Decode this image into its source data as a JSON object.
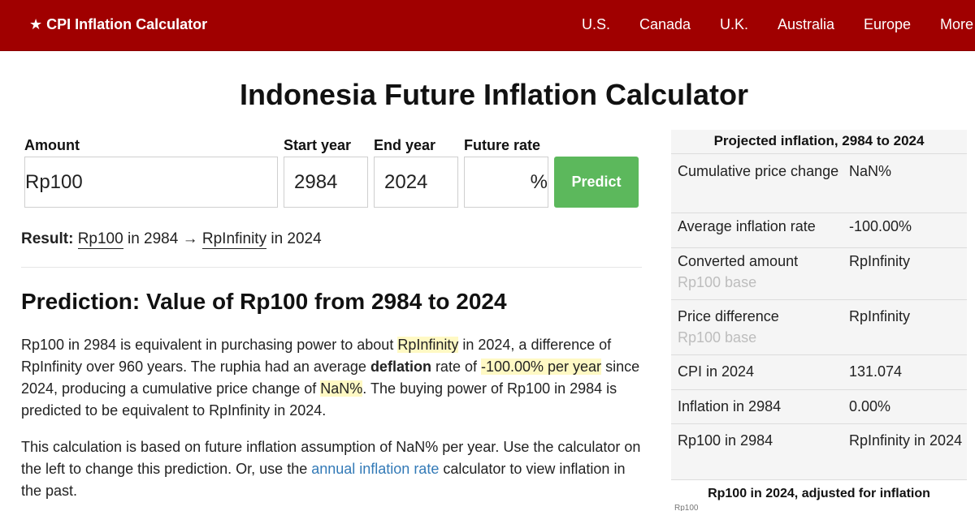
{
  "nav": {
    "brand": "★ CPI Inflation Calculator",
    "links": [
      "U.S.",
      "Canada",
      "U.K.",
      "Australia",
      "Europe",
      "More"
    ]
  },
  "page_title": "Indonesia Future Inflation Calculator",
  "form": {
    "amount_label": "Amount",
    "amount_value": "Rp100",
    "start_label": "Start year",
    "start_value": "2984",
    "end_label": "End year",
    "end_value": "2024",
    "rate_label": "Future rate",
    "rate_value": "",
    "rate_suffix": "%",
    "predict_label": "Predict"
  },
  "result": {
    "label": "Result:",
    "from_amount": "Rp100",
    "in_word_1": " in 2984 ",
    "arrow": "→",
    "to_amount": "RpInfinity",
    "in_word_2": " in 2024"
  },
  "prediction": {
    "heading": "Prediction: Value of Rp100 from 2984 to 2024",
    "p1_a": "Rp100 in 2984 is equivalent in purchasing power to about ",
    "p1_hl1": "RpInfinity",
    "p1_b": " in 2024, a difference of RpInfinity over 960 years. The ruphia had an average ",
    "p1_bold": "deflation",
    "p1_c": " rate of ",
    "p1_hl2": "-100.00% per year",
    "p1_d": " since 2024, producing a cumulative price change of ",
    "p1_hl3": "NaN%",
    "p1_e": ". The buying power of Rp100 in 2984 is predicted to be equivalent to RpInfinity in 2024.",
    "p2_a": "This calculation is based on future inflation assumption of NaN% per year. Use the calculator on the left to change this prediction. Or, use the ",
    "p2_link": "annual inflation rate",
    "p2_b": " calculator to view inflation in the past."
  },
  "sidebar": {
    "title": "Projected inflation, 2984 to 2024",
    "rows": [
      {
        "key": "Cumulative price change",
        "value": "NaN%"
      },
      {
        "key": "Average inflation rate",
        "value": "-100.00%"
      },
      {
        "key": "Converted amount",
        "sub": "Rp100 base",
        "value": "RpInfinity"
      },
      {
        "key": "Price difference",
        "sub": "Rp100 base",
        "value": "RpInfinity"
      },
      {
        "key": "CPI in 2024",
        "value": "131.074"
      },
      {
        "key": "Inflation in 2984",
        "value": "0.00%"
      },
      {
        "key": "Rp100 in 2984",
        "value": "RpInfinity in 2024"
      }
    ],
    "chart_title": "Rp100 in 2024, adjusted for inflation",
    "chart_axis_label": "Rp100"
  }
}
